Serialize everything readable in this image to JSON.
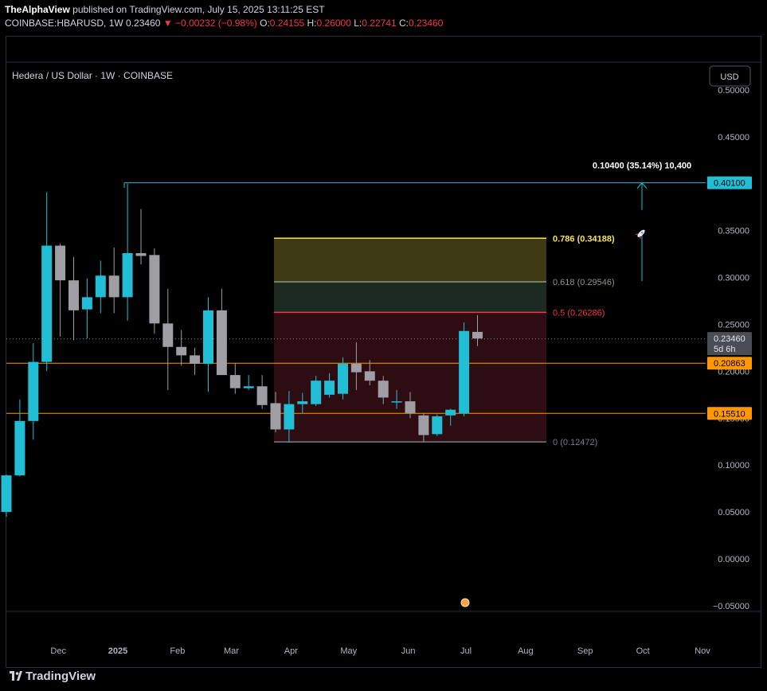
{
  "header": {
    "author": "TheAlphaView",
    "published_text": "published on TradingView.com, July 15, 2025 13:11:25 EST",
    "symbol": "COINBASE:HBARUSD, 1W",
    "last": "0.23460",
    "arrow": "▼",
    "change": "−0.00232 (−0.98%)",
    "o_label": "O:",
    "o": "0.24155",
    "h_label": "H:",
    "h": "0.26000",
    "l_label": "L:",
    "l": "0.22741",
    "c_label": "C:",
    "c": "0.23460"
  },
  "footer": {
    "brand": "TradingView"
  },
  "colors": {
    "up": "#22bed6",
    "down": "#9e9ea4",
    "fib_786": "#f5e35c",
    "fib_618": "#8b9b7e",
    "fib_05": "#f23645",
    "fib_0": "#787b86",
    "level_orange": "#ff9800",
    "measure": "#22bed6"
  },
  "chart_data": {
    "type": "candlestick",
    "title": "Hedera / US Dollar · 1W · COINBASE",
    "currency_button": "USD",
    "ylim": [
      -0.06,
      0.52
    ],
    "y_ticks": [
      "0.50000",
      "0.45000",
      "0.40000",
      "0.35000",
      "0.30000",
      "0.25000",
      "0.20000",
      "0.15000",
      "0.10000",
      "0.05000",
      "0.00000",
      "−0.05000"
    ],
    "y_tick_values": [
      0.5,
      0.45,
      0.4,
      0.35,
      0.3,
      0.25,
      0.2,
      0.15,
      0.1,
      0.05,
      0.0,
      -0.05
    ],
    "x_ticks": [
      "Dec",
      "2025",
      "Feb",
      "Mar",
      "Apr",
      "May",
      "Jun",
      "Jul",
      "Aug",
      "Sep",
      "Oct",
      "Nov"
    ],
    "x_tick_dates": [
      "2024-12-01",
      "2025-01-01",
      "2025-02-01",
      "2025-03-01",
      "2025-04-01",
      "2025-05-01",
      "2025-06-01",
      "2025-07-01",
      "2025-08-01",
      "2025-09-01",
      "2025-10-01",
      "2025-11-01"
    ],
    "candles": [
      {
        "date": "2024-11-04",
        "o": 0.05,
        "h": 0.09,
        "l": 0.045,
        "c": 0.089
      },
      {
        "date": "2024-11-11",
        "o": 0.089,
        "h": 0.17,
        "l": 0.088,
        "c": 0.147
      },
      {
        "date": "2024-11-18",
        "o": 0.147,
        "h": 0.23,
        "l": 0.127,
        "c": 0.21
      },
      {
        "date": "2024-11-25",
        "o": 0.21,
        "h": 0.391,
        "l": 0.2,
        "c": 0.334
      },
      {
        "date": "2024-12-02",
        "o": 0.334,
        "h": 0.336,
        "l": 0.237,
        "c": 0.297
      },
      {
        "date": "2024-12-09",
        "o": 0.297,
        "h": 0.322,
        "l": 0.233,
        "c": 0.265
      },
      {
        "date": "2024-12-16",
        "o": 0.266,
        "h": 0.299,
        "l": 0.235,
        "c": 0.279
      },
      {
        "date": "2024-12-23",
        "o": 0.279,
        "h": 0.318,
        "l": 0.262,
        "c": 0.302
      },
      {
        "date": "2024-12-30",
        "o": 0.302,
        "h": 0.332,
        "l": 0.262,
        "c": 0.279
      },
      {
        "date": "2025-01-06",
        "o": 0.279,
        "h": 0.4,
        "l": 0.254,
        "c": 0.326
      },
      {
        "date": "2025-01-13",
        "o": 0.326,
        "h": 0.373,
        "l": 0.314,
        "c": 0.323
      },
      {
        "date": "2025-01-20",
        "o": 0.324,
        "h": 0.331,
        "l": 0.24,
        "c": 0.251
      },
      {
        "date": "2025-01-27",
        "o": 0.251,
        "h": 0.288,
        "l": 0.18,
        "c": 0.226
      },
      {
        "date": "2025-02-03",
        "o": 0.226,
        "h": 0.244,
        "l": 0.206,
        "c": 0.217
      },
      {
        "date": "2025-02-10",
        "o": 0.217,
        "h": 0.225,
        "l": 0.196,
        "c": 0.208
      },
      {
        "date": "2025-02-17",
        "o": 0.208,
        "h": 0.279,
        "l": 0.178,
        "c": 0.265
      },
      {
        "date": "2025-02-24",
        "o": 0.265,
        "h": 0.288,
        "l": 0.198,
        "c": 0.196
      },
      {
        "date": "2025-03-03",
        "o": 0.196,
        "h": 0.209,
        "l": 0.176,
        "c": 0.182
      },
      {
        "date": "2025-03-10",
        "o": 0.182,
        "h": 0.196,
        "l": 0.18,
        "c": 0.184
      },
      {
        "date": "2025-03-17",
        "o": 0.184,
        "h": 0.196,
        "l": 0.16,
        "c": 0.164
      },
      {
        "date": "2025-03-24",
        "o": 0.166,
        "h": 0.178,
        "l": 0.135,
        "c": 0.138
      },
      {
        "date": "2025-03-31",
        "o": 0.138,
        "h": 0.179,
        "l": 0.124,
        "c": 0.165
      },
      {
        "date": "2025-04-07",
        "o": 0.165,
        "h": 0.177,
        "l": 0.155,
        "c": 0.168
      },
      {
        "date": "2025-04-14",
        "o": 0.165,
        "h": 0.195,
        "l": 0.163,
        "c": 0.19
      },
      {
        "date": "2025-04-21",
        "o": 0.175,
        "h": 0.198,
        "l": 0.172,
        "c": 0.19
      },
      {
        "date": "2025-04-28",
        "o": 0.176,
        "h": 0.215,
        "l": 0.17,
        "c": 0.208
      },
      {
        "date": "2025-05-05",
        "o": 0.208,
        "h": 0.231,
        "l": 0.18,
        "c": 0.199
      },
      {
        "date": "2025-05-12",
        "o": 0.2,
        "h": 0.212,
        "l": 0.185,
        "c": 0.19
      },
      {
        "date": "2025-05-19",
        "o": 0.19,
        "h": 0.195,
        "l": 0.165,
        "c": 0.172
      },
      {
        "date": "2025-05-26",
        "o": 0.168,
        "h": 0.18,
        "l": 0.16,
        "c": 0.168
      },
      {
        "date": "2025-06-02",
        "o": 0.168,
        "h": 0.178,
        "l": 0.15,
        "c": 0.155
      },
      {
        "date": "2025-06-09",
        "o": 0.153,
        "h": 0.155,
        "l": 0.125,
        "c": 0.132
      },
      {
        "date": "2025-06-16",
        "o": 0.133,
        "h": 0.154,
        "l": 0.131,
        "c": 0.152
      },
      {
        "date": "2025-06-23",
        "o": 0.153,
        "h": 0.16,
        "l": 0.142,
        "c": 0.159
      },
      {
        "date": "2025-06-30",
        "o": 0.155,
        "h": 0.252,
        "l": 0.152,
        "c": 0.243
      },
      {
        "date": "2025-07-07",
        "o": 0.242,
        "h": 0.26,
        "l": 0.227,
        "c": 0.235
      }
    ],
    "fibonacci": [
      {
        "ratio": "0.786",
        "value": "(0.34188)",
        "price": 0.34188
      },
      {
        "ratio": "0.618",
        "value": "(0.29546)",
        "price": 0.29546
      },
      {
        "ratio": "0.5",
        "value": "(0.26286)",
        "price": 0.26286
      },
      {
        "ratio": "0",
        "value": "(0.12472)",
        "price": 0.12472
      }
    ],
    "horizontal_levels": [
      {
        "label": "0.40100",
        "price": 0.401
      },
      {
        "label": "0.20863",
        "price": 0.20863
      },
      {
        "label": "0.15510",
        "price": 0.1551
      }
    ],
    "current_price": {
      "label": "0.23460",
      "countdown": "5d 6h",
      "price": 0.2346
    },
    "measure_label": "0.10400 (35.14%) 10,400"
  }
}
